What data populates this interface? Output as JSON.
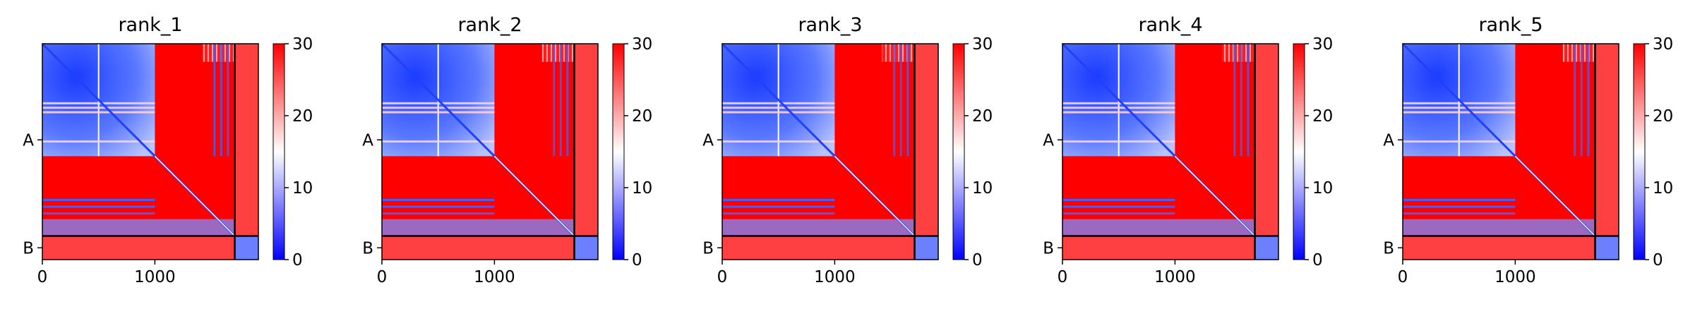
{
  "chart_data": [
    {
      "type": "heatmap",
      "title": "rank_1",
      "xticks": [
        "0",
        "1000"
      ],
      "yticks": [
        "A",
        "B"
      ],
      "chain_lengths": {
        "A": 1710,
        "B": 210
      },
      "xlim": [
        0,
        1920
      ],
      "colorbar": {
        "min": 0,
        "max": 30,
        "ticks": [
          "0",
          "10",
          "20",
          "30"
        ],
        "colors": [
          "#0000ff",
          "#ffffff",
          "#ff0000"
        ]
      }
    },
    {
      "type": "heatmap",
      "title": "rank_2",
      "xticks": [
        "0",
        "1000"
      ],
      "yticks": [
        "A",
        "B"
      ],
      "chain_lengths": {
        "A": 1710,
        "B": 210
      },
      "xlim": [
        0,
        1920
      ],
      "colorbar": {
        "min": 0,
        "max": 30,
        "ticks": [
          "0",
          "10",
          "20",
          "30"
        ],
        "colors": [
          "#0000ff",
          "#ffffff",
          "#ff0000"
        ]
      }
    },
    {
      "type": "heatmap",
      "title": "rank_3",
      "xticks": [
        "0",
        "1000"
      ],
      "yticks": [
        "A",
        "B"
      ],
      "chain_lengths": {
        "A": 1710,
        "B": 210
      },
      "xlim": [
        0,
        1920
      ],
      "colorbar": {
        "min": 0,
        "max": 30,
        "ticks": [
          "0",
          "10",
          "20",
          "30"
        ],
        "colors": [
          "#0000ff",
          "#ffffff",
          "#ff0000"
        ]
      }
    },
    {
      "type": "heatmap",
      "title": "rank_4",
      "xticks": [
        "0",
        "1000"
      ],
      "yticks": [
        "A",
        "B"
      ],
      "chain_lengths": {
        "A": 1710,
        "B": 210
      },
      "xlim": [
        0,
        1920
      ],
      "colorbar": {
        "min": 0,
        "max": 30,
        "ticks": [
          "0",
          "10",
          "20",
          "30"
        ],
        "colors": [
          "#0000ff",
          "#ffffff",
          "#ff0000"
        ]
      }
    },
    {
      "type": "heatmap",
      "title": "rank_5",
      "xticks": [
        "0",
        "1000"
      ],
      "yticks": [
        "A",
        "B"
      ],
      "chain_lengths": {
        "A": 1710,
        "B": 210
      },
      "xlim": [
        0,
        1920
      ],
      "colorbar": {
        "min": 0,
        "max": 30,
        "ticks": [
          "0",
          "10",
          "20",
          "30"
        ],
        "colors": [
          "#0000ff",
          "#ffffff",
          "#ff0000"
        ]
      }
    }
  ]
}
